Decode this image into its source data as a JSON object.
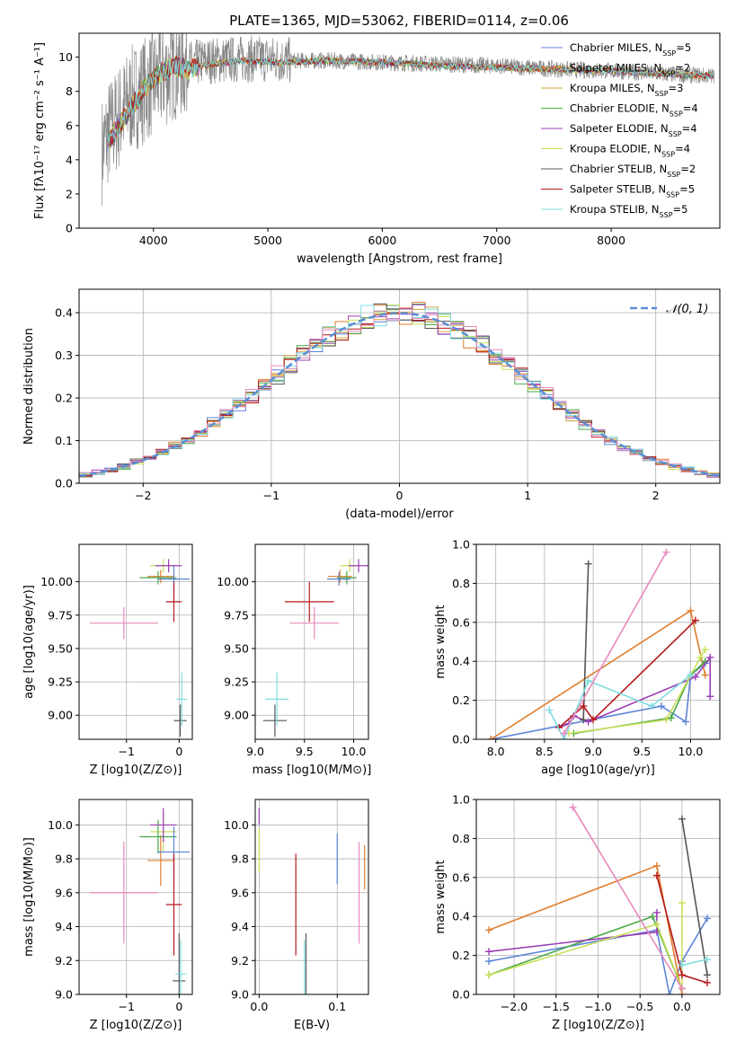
{
  "figure_title": "PLATE=1365, MJD=53062, FIBERID=0114, z=0.06",
  "colors": {
    "chabrier_miles": "#5b84d6",
    "salpeter_miles": "#e07d2c",
    "kroupa_miles": "#d6a23a",
    "chabrier_elodie": "#49a849",
    "salpeter_elodie": "#9c3fb5",
    "kroupa_elodie": "#c8e05a",
    "chabrier_stelib": "#555555",
    "salpeter_stelib": "#b5191c",
    "kroupa_stelib": "#7fdde0",
    "pink": "#e889bd",
    "normal": "#5b8ed6",
    "data": "#888888"
  },
  "chart_data": [
    {
      "id": "spectrum",
      "type": "line",
      "title": "PLATE=1365, MJD=53062, FIBERID=0114, z=0.06",
      "xlabel": "wavelength [Angstrom, rest frame]",
      "ylabel": "Flux [fλ10⁻¹⁷ erg cm⁻² s⁻¹ A⁻¹]",
      "xlim": [
        3350,
        8950
      ],
      "ylim": [
        0,
        11.4
      ],
      "xticks": [
        4000,
        5000,
        6000,
        7000,
        8000
      ],
      "yticks": [
        0,
        2,
        4,
        6,
        8,
        10
      ],
      "grid": false,
      "legend_position": "right",
      "legend": [
        {
          "label": "Chabrier MILES, N_SSP=5",
          "color": "chabrier_miles"
        },
        {
          "label": "Salpeter MILES, N_SSP=2",
          "color": "salpeter_miles"
        },
        {
          "label": "Kroupa MILES, N_SSP=3",
          "color": "kroupa_miles"
        },
        {
          "label": "Chabrier ELODIE, N_SSP=4",
          "color": "chabrier_elodie"
        },
        {
          "label": "Salpeter ELODIE, N_SSP=4",
          "color": "salpeter_elodie"
        },
        {
          "label": "Kroupa ELODIE, N_SSP=4",
          "color": "kroupa_elodie"
        },
        {
          "label": "Chabrier STELIB, N_SSP=2",
          "color": "chabrier_stelib"
        },
        {
          "label": "Salpeter STELIB, N_SSP=5",
          "color": "salpeter_stelib"
        },
        {
          "label": "Kroupa STELIB, N_SSP=5",
          "color": "kroupa_stelib"
        }
      ],
      "data_series": {
        "name": "",
        "color": "data",
        "x": [
          3550,
          3600,
          3650,
          3700,
          3800,
          3900,
          4000,
          4100,
          4200,
          4300,
          4500,
          4800,
          5000,
          5200,
          5500,
          6000,
          6500,
          7000,
          7500,
          8000,
          8500,
          8900
        ],
        "y": [
          4.5,
          5.5,
          6.0,
          6.5,
          7.5,
          8.0,
          8.5,
          9.0,
          9.5,
          9.6,
          9.8,
          9.9,
          9.9,
          9.8,
          9.8,
          9.7,
          9.6,
          9.5,
          9.3,
          9.2,
          9.0,
          8.9
        ]
      },
      "model_series": {
        "name": "",
        "color": "kroupa_stelib",
        "x": [
          3600,
          3700,
          3800,
          3900,
          4000,
          4100,
          4200,
          4300,
          4500,
          4800,
          5000,
          5200,
          5500,
          6000,
          6500,
          7000,
          7500,
          8000,
          8500,
          8900
        ],
        "y": [
          5.0,
          6.0,
          7.0,
          8.0,
          8.8,
          9.2,
          9.5,
          9.3,
          9.6,
          9.8,
          9.7,
          9.7,
          9.8,
          9.7,
          9.5,
          9.4,
          9.3,
          9.2,
          9.0,
          8.9
        ]
      }
    },
    {
      "id": "residuals",
      "type": "bar",
      "xlabel": "(data-model)/error",
      "ylabel": "Normed distribution",
      "xlim": [
        -2.5,
        2.5
      ],
      "ylim": [
        0,
        0.455
      ],
      "xticks": [
        -2,
        -1,
        0,
        1,
        2
      ],
      "yticks": [
        0.0,
        0.1,
        0.2,
        0.3,
        0.4
      ],
      "grid": true,
      "legend_position": "top-right",
      "legend_label": "𝒩(0, 1)",
      "normal_curve": {
        "mean": 0,
        "sigma": 1
      }
    },
    {
      "id": "age_vs_Z",
      "type": "scatter",
      "xlabel": "Z [log10(Z/Z⊙)]",
      "ylabel": "age  [log10(age/yr)]",
      "xlim": [
        -1.9,
        0.25
      ],
      "ylim": [
        8.82,
        10.28
      ],
      "xticks": [
        -1,
        0
      ],
      "yticks": [
        9.0,
        9.25,
        9.5,
        9.75,
        10.0
      ],
      "grid": true,
      "points": [
        {
          "x": -1.05,
          "y": 9.69,
          "xerr": 0.65,
          "yerr": 0.12,
          "color": "pink"
        },
        {
          "x": -0.3,
          "y": 10.12,
          "xerr": 0.25,
          "yerr": 0.05,
          "color": "kroupa_elodie"
        },
        {
          "x": -0.35,
          "y": 10.04,
          "xerr": 0.25,
          "yerr": 0.05,
          "color": "salpeter_miles"
        },
        {
          "x": -0.4,
          "y": 10.03,
          "xerr": 0.35,
          "yerr": 0.05,
          "color": "chabrier_elodie"
        },
        {
          "x": -0.1,
          "y": 10.02,
          "xerr": 0.3,
          "yerr": 0.1,
          "color": "chabrier_miles"
        },
        {
          "x": -0.2,
          "y": 10.12,
          "xerr": 0.25,
          "yerr": 0.05,
          "color": "salpeter_elodie"
        },
        {
          "x": -0.1,
          "y": 9.85,
          "xerr": 0.15,
          "yerr": 0.15,
          "color": "salpeter_stelib"
        },
        {
          "x": 0.02,
          "y": 8.96,
          "xerr": 0.12,
          "yerr": 0.12,
          "color": "chabrier_stelib"
        },
        {
          "x": 0.05,
          "y": 9.12,
          "xerr": 0.1,
          "yerr": 0.2,
          "color": "kroupa_stelib"
        }
      ]
    },
    {
      "id": "age_vs_mass",
      "type": "scatter",
      "xlabel": "mass [log10(M/M⊙)]",
      "ylabel": "",
      "xlim": [
        9.0,
        10.15
      ],
      "ylim": [
        8.82,
        10.28
      ],
      "xticks": [
        9.0,
        9.5,
        10.0
      ],
      "yticks": [
        9.0,
        9.25,
        9.5,
        9.75,
        10.0
      ],
      "grid": true,
      "points": [
        {
          "x": 9.6,
          "y": 9.69,
          "xerr": 0.25,
          "yerr": 0.12,
          "color": "pink"
        },
        {
          "x": 9.96,
          "y": 10.12,
          "xerr": 0.1,
          "yerr": 0.05,
          "color": "kroupa_elodie"
        },
        {
          "x": 9.86,
          "y": 10.04,
          "xerr": 0.12,
          "yerr": 0.05,
          "color": "salpeter_miles"
        },
        {
          "x": 9.93,
          "y": 10.03,
          "xerr": 0.1,
          "yerr": 0.05,
          "color": "chabrier_elodie"
        },
        {
          "x": 9.85,
          "y": 10.02,
          "xerr": 0.12,
          "yerr": 0.05,
          "color": "chabrier_miles"
        },
        {
          "x": 10.05,
          "y": 10.12,
          "xerr": 0.1,
          "yerr": 0.05,
          "color": "salpeter_elodie"
        },
        {
          "x": 9.55,
          "y": 9.85,
          "xerr": 0.25,
          "yerr": 0.15,
          "color": "salpeter_stelib"
        },
        {
          "x": 9.2,
          "y": 8.96,
          "xerr": 0.12,
          "yerr": 0.12,
          "color": "chabrier_stelib"
        },
        {
          "x": 9.22,
          "y": 9.12,
          "xerr": 0.12,
          "yerr": 0.2,
          "color": "kroupa_stelib"
        }
      ]
    },
    {
      "id": "weight_vs_age",
      "type": "line",
      "xlabel": "age  [log10(age/yr)]",
      "ylabel": "mass weight",
      "xlim": [
        7.8,
        10.3
      ],
      "ylim": [
        0,
        1.0
      ],
      "xticks": [
        8.0,
        8.5,
        9.0,
        9.5,
        10.0
      ],
      "yticks": [
        0.0,
        0.2,
        0.4,
        0.6,
        0.8,
        1.0
      ],
      "grid": true,
      "series": [
        {
          "color": "chabrier_miles",
          "x": [
            7.95,
            9.7,
            9.95,
            10.0,
            10.15
          ],
          "y": [
            0.0,
            0.17,
            0.09,
            0.33,
            0.39
          ]
        },
        {
          "color": "salpeter_miles",
          "x": [
            7.95,
            10.0,
            10.15
          ],
          "y": [
            0.0,
            0.66,
            0.33
          ]
        },
        {
          "color": "chabrier_elodie",
          "x": [
            8.8,
            9.8,
            10.0,
            10.15
          ],
          "y": [
            0.03,
            0.11,
            0.33,
            0.4
          ]
        },
        {
          "color": "salpeter_elodie",
          "x": [
            8.65,
            8.75,
            8.8,
            8.95,
            10.05,
            10.2,
            10.2
          ],
          "y": [
            0.06,
            0.08,
            0.12,
            0.09,
            0.32,
            0.42,
            0.22
          ]
        },
        {
          "color": "kroupa_elodie",
          "x": [
            8.75,
            9.75,
            10.1,
            10.15
          ],
          "y": [
            0.03,
            0.1,
            0.42,
            0.46
          ]
        },
        {
          "color": "chabrier_stelib",
          "x": [
            8.9,
            8.95
          ],
          "y": [
            0.1,
            0.9
          ]
        },
        {
          "color": "salpeter_stelib",
          "x": [
            8.65,
            8.9,
            9.0,
            10.05
          ],
          "y": [
            0.06,
            0.17,
            0.1,
            0.61
          ]
        },
        {
          "color": "kroupa_stelib",
          "x": [
            8.55,
            8.7,
            8.95,
            9.6,
            10.0
          ],
          "y": [
            0.15,
            0.0,
            0.3,
            0.17,
            0.33
          ]
        },
        {
          "color": "pink",
          "x": [
            8.7,
            9.75
          ],
          "y": [
            0.03,
            0.96
          ]
        }
      ]
    },
    {
      "id": "mass_vs_Z",
      "type": "scatter",
      "xlabel": "Z [log10(Z/Z⊙)]",
      "ylabel": "mass [log10(M/M⊙)]",
      "xlim": [
        -1.9,
        0.25
      ],
      "ylim": [
        9.0,
        10.15
      ],
      "xticks": [
        -1,
        0
      ],
      "yticks": [
        9.0,
        9.2,
        9.4,
        9.6,
        9.8,
        10.0
      ],
      "grid": true,
      "points": [
        {
          "x": -1.05,
          "y": 9.6,
          "xerr": 0.65,
          "yerr": 0.3,
          "color": "pink"
        },
        {
          "x": -0.3,
          "y": 9.96,
          "xerr": 0.25,
          "yerr": 0.12,
          "color": "kroupa_elodie"
        },
        {
          "x": -0.35,
          "y": 9.79,
          "xerr": 0.25,
          "yerr": 0.15,
          "color": "salpeter_miles"
        },
        {
          "x": -0.4,
          "y": 9.93,
          "xerr": 0.35,
          "yerr": 0.1,
          "color": "chabrier_elodie"
        },
        {
          "x": -0.1,
          "y": 9.84,
          "xerr": 0.3,
          "yerr": 0.15,
          "color": "chabrier_miles"
        },
        {
          "x": -0.3,
          "y": 10.0,
          "xerr": 0.25,
          "yerr": 0.1,
          "color": "salpeter_elodie"
        },
        {
          "x": -0.1,
          "y": 9.53,
          "xerr": 0.15,
          "yerr": 0.3,
          "color": "salpeter_stelib"
        },
        {
          "x": 0.0,
          "y": 9.08,
          "xerr": 0.12,
          "yerr": 0.28,
          "color": "chabrier_stelib"
        },
        {
          "x": 0.03,
          "y": 9.12,
          "xerr": 0.1,
          "yerr": 0.2,
          "color": "kroupa_stelib"
        }
      ]
    },
    {
      "id": "mass_vs_ebv",
      "type": "scatter",
      "xlabel": "E(B-V)",
      "ylabel": "",
      "xlim": [
        -0.005,
        0.14
      ],
      "ylim": [
        9.0,
        10.15
      ],
      "xticks": [
        0.0,
        0.1
      ],
      "yticks": [
        9.0,
        9.2,
        9.4,
        9.6,
        9.8,
        10.0
      ],
      "grid": true,
      "points": [
        {
          "x": 0.0,
          "y": 10.05,
          "xerr": 0,
          "yerr": 0.05,
          "color": "salpeter_elodie"
        },
        {
          "x": 0.0,
          "y": 9.85,
          "xerr": 0,
          "yerr": 0.13,
          "color": "kroupa_elodie"
        },
        {
          "x": 0.047,
          "y": 9.53,
          "xerr": 0,
          "yerr": 0.3,
          "color": "salpeter_stelib"
        },
        {
          "x": 0.058,
          "y": 9.12,
          "xerr": 0,
          "yerr": 0.2,
          "color": "kroupa_stelib"
        },
        {
          "x": 0.06,
          "y": 9.08,
          "xerr": 0,
          "yerr": 0.28,
          "color": "chabrier_stelib"
        },
        {
          "x": 0.1,
          "y": 9.8,
          "xerr": 0,
          "yerr": 0.15,
          "color": "chabrier_miles"
        },
        {
          "x": 0.128,
          "y": 9.6,
          "xerr": 0,
          "yerr": 0.3,
          "color": "pink"
        },
        {
          "x": 0.135,
          "y": 9.75,
          "xerr": 0,
          "yerr": 0.13,
          "color": "salpeter_miles"
        }
      ]
    },
    {
      "id": "weight_vs_Z",
      "type": "line",
      "xlabel": "Z [log10(Z/Z⊙)]",
      "ylabel": "mass weight",
      "xlim": [
        -2.45,
        0.45
      ],
      "ylim": [
        0,
        1.0
      ],
      "xticks": [
        -2.0,
        -1.5,
        -1.0,
        -0.5,
        0.0
      ],
      "yticks": [
        0.0,
        0.2,
        0.4,
        0.6,
        0.8,
        1.0
      ],
      "grid": true,
      "series": [
        {
          "color": "chabrier_miles",
          "x": [
            -2.3,
            -0.3,
            -0.15,
            0.0,
            0.3
          ],
          "y": [
            0.17,
            0.33,
            0.0,
            0.17,
            0.39
          ]
        },
        {
          "color": "salpeter_miles",
          "x": [
            -2.3,
            -0.3,
            0.0
          ],
          "y": [
            0.33,
            0.66,
            0.0
          ]
        },
        {
          "color": "chabrier_elodie",
          "x": [
            -2.3,
            -0.35,
            0.0
          ],
          "y": [
            0.1,
            0.4,
            0.03
          ]
        },
        {
          "color": "salpeter_elodie",
          "x": [
            -2.3,
            -0.3,
            -0.3
          ],
          "y": [
            0.22,
            0.32,
            0.42
          ]
        },
        {
          "color": "kroupa_elodie",
          "x": [
            -2.3,
            -0.3,
            0.0,
            0.0
          ],
          "y": [
            0.1,
            0.36,
            0.03,
            0.47
          ]
        },
        {
          "color": "chabrier_stelib",
          "x": [
            0.0,
            0.3
          ],
          "y": [
            0.9,
            0.1
          ]
        },
        {
          "color": "salpeter_stelib",
          "x": [
            -0.3,
            0.0,
            0.3
          ],
          "y": [
            0.61,
            0.1,
            0.06
          ]
        },
        {
          "color": "kroupa_stelib",
          "x": [
            0.0,
            0.3
          ],
          "y": [
            0.15,
            0.18
          ]
        },
        {
          "color": "pink",
          "x": [
            -1.3,
            0.0
          ],
          "y": [
            0.96,
            0.03
          ]
        }
      ]
    }
  ]
}
